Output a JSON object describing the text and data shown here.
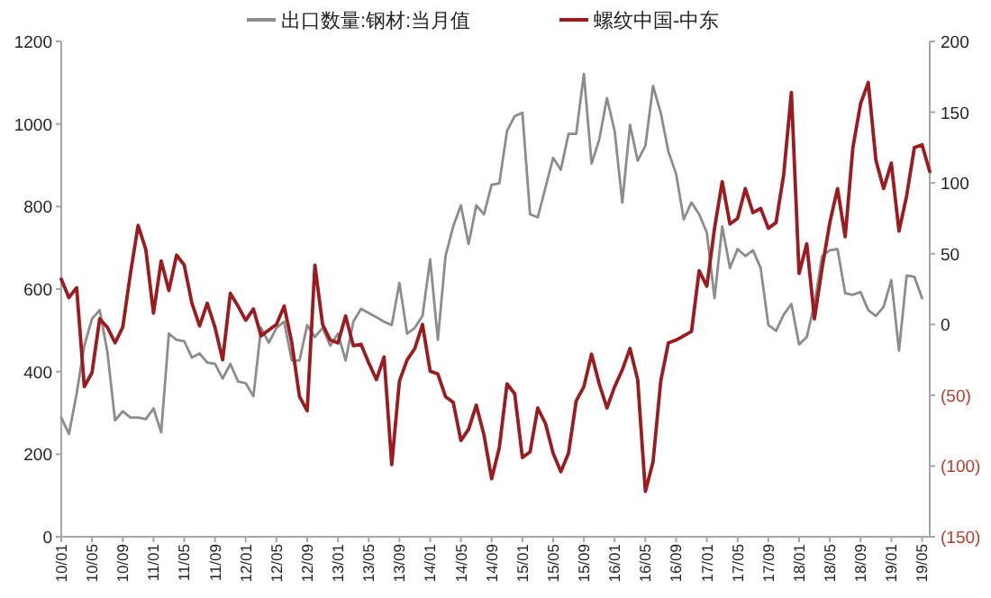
{
  "chart_data": {
    "type": "line",
    "categories": [
      "10/01",
      null,
      null,
      null,
      "10/05",
      null,
      null,
      null,
      "10/09",
      null,
      null,
      null,
      "11/01",
      null,
      null,
      null,
      "11/05",
      null,
      null,
      null,
      "11/09",
      null,
      null,
      null,
      "12/01",
      null,
      null,
      null,
      "12/05",
      null,
      null,
      null,
      "12/09",
      null,
      null,
      null,
      "13/01",
      null,
      null,
      null,
      "13/05",
      null,
      null,
      null,
      "13/09",
      null,
      null,
      null,
      "14/01",
      null,
      null,
      null,
      "14/05",
      null,
      null,
      null,
      "14/09",
      null,
      null,
      null,
      "15/01",
      null,
      null,
      null,
      "15/05",
      null,
      null,
      null,
      "15/09",
      null,
      null,
      null,
      "16/01",
      null,
      null,
      null,
      "16/05",
      null,
      null,
      null,
      "16/09",
      null,
      null,
      null,
      "17/01",
      null,
      null,
      null,
      "17/05",
      null,
      null,
      null,
      "17/09",
      null,
      null,
      null,
      "18/01",
      null,
      null,
      null,
      "18/05",
      null,
      null,
      null,
      "18/09",
      null,
      null,
      null,
      "19/01",
      null,
      null,
      null,
      "19/05",
      null
    ],
    "series": [
      {
        "name": "出口数量:钢材:当月值",
        "color": "#8c8c8c",
        "values": [
          289,
          249,
          347,
          463,
          528,
          549,
          448,
          282,
          304,
          289,
          289,
          285,
          311,
          253,
          492,
          477,
          474,
          434,
          444,
          422,
          419,
          383,
          419,
          376,
          372,
          340,
          506,
          470,
          506,
          521,
          427,
          427,
          513,
          484,
          506,
          463,
          492,
          427,
          521,
          552,
          542,
          532,
          521,
          513,
          615,
          492,
          506,
          535,
          672,
          477,
          680,
          752,
          803,
          709,
          803,
          781,
          853,
          856,
          983,
          1019,
          1027,
          781,
          774,
          846,
          918,
          889,
          976,
          976,
          1121,
          904,
          962,
          1063,
          983,
          810,
          998,
          911,
          947,
          1092,
          1027,
          933,
          879,
          769,
          810,
          781,
          737,
          578,
          752,
          651,
          697,
          680,
          694,
          651,
          513,
          499,
          538,
          564,
          466,
          484,
          564,
          680,
          694,
          697,
          590,
          586,
          593,
          549,
          535,
          557,
          622,
          451,
          633,
          630,
          578,
          null
        ]
      },
      {
        "name": "螺纹中国-中东",
        "color": "#9b1b1e",
        "axis": "y2",
        "values": [
          32,
          19,
          26,
          -44,
          -34,
          4,
          -2,
          -13,
          -2,
          36,
          70,
          53,
          8,
          45,
          24,
          49,
          42,
          15,
          -1,
          15,
          -2,
          -25,
          22,
          13,
          3,
          11,
          -8,
          -4,
          0,
          13,
          -13,
          -51,
          -61,
          42,
          0,
          -11,
          -13,
          6,
          -15,
          -14,
          -27,
          -39,
          -23,
          -99,
          -40,
          -25,
          -17,
          0,
          -33,
          -35,
          -51,
          -55,
          -82,
          -74,
          -57,
          -78,
          -109,
          -87,
          -42,
          -49,
          -94,
          -90,
          -59,
          -70,
          -91,
          -104,
          -91,
          -54,
          -44,
          -21,
          -42,
          -59,
          -44,
          -32,
          -17,
          -39,
          -118,
          -97,
          -40,
          -13,
          -11,
          -8,
          -5,
          38,
          27,
          68,
          101,
          71,
          75,
          96,
          79,
          82,
          68,
          72,
          106,
          164,
          36,
          57,
          4,
          40,
          72,
          96,
          62,
          125,
          156,
          171,
          116,
          96,
          114,
          66,
          91,
          125,
          127,
          108
        ]
      }
    ],
    "ylim": [
      0,
      1200
    ],
    "yticks": [
      0,
      200,
      400,
      600,
      800,
      1000,
      1200
    ],
    "y2lim": [
      -150,
      200
    ],
    "y2ticks": [
      {
        "value": -150,
        "label": "(150)"
      },
      {
        "value": -100,
        "label": "(100)"
      },
      {
        "value": -50,
        "label": "(50)"
      },
      0,
      50,
      100,
      150,
      200
    ],
    "legend": "top",
    "grid": false,
    "marker": "none",
    "line_style": "solid"
  }
}
